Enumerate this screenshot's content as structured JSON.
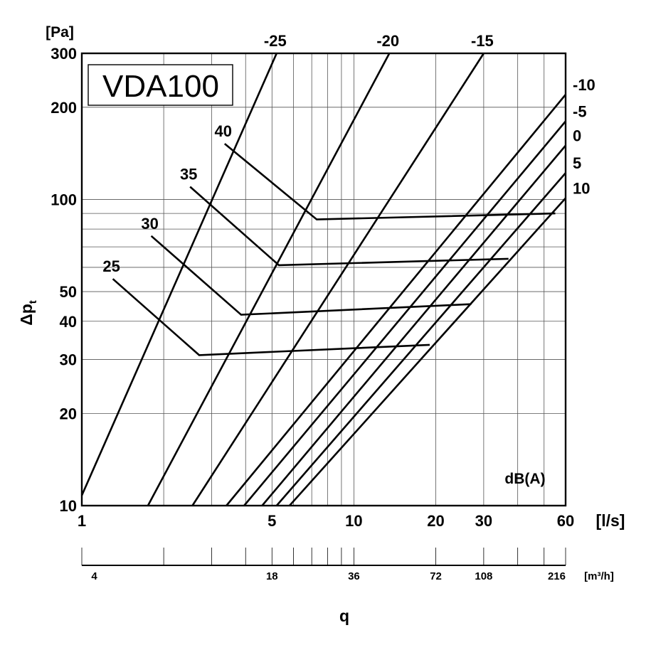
{
  "chart_data": {
    "type": "line",
    "title": "VDA100",
    "x_unit": "[l/s]",
    "y_unit": "[Pa]",
    "ylabel_main": "Δp",
    "ylabel_sub": "t",
    "xlabel": "q",
    "x_scale": "log",
    "y_scale": "log",
    "xlim": [
      1,
      60
    ],
    "ylim": [
      10,
      300
    ],
    "x_ticks": [
      1,
      5,
      10,
      20,
      30,
      60
    ],
    "y_ticks": [
      10,
      20,
      30,
      40,
      50,
      100,
      200,
      300
    ],
    "x_grid": [
      1,
      2,
      3,
      4,
      5,
      6,
      7,
      8,
      9,
      10,
      20,
      30,
      40,
      50,
      60
    ],
    "y_grid": [
      10,
      20,
      30,
      40,
      50,
      60,
      70,
      80,
      90,
      100,
      200,
      300
    ],
    "secondary_axis": {
      "unit": "[m³/h]",
      "ticks": [
        4,
        18,
        36,
        72,
        108,
        216
      ],
      "minor_q": [
        1,
        2,
        3,
        4,
        5,
        6,
        7,
        8,
        9,
        10,
        20,
        30,
        40,
        50,
        60
      ]
    },
    "damper_lines": [
      {
        "label": "-25",
        "points": [
          [
            1,
            10.8
          ],
          [
            5.2,
            300
          ]
        ]
      },
      {
        "label": "-20",
        "points": [
          [
            1.75,
            10
          ],
          [
            13.5,
            300
          ]
        ]
      },
      {
        "label": "-15",
        "points": [
          [
            2.55,
            10
          ],
          [
            30,
            300
          ]
        ]
      },
      {
        "label": "-10",
        "points": [
          [
            3.4,
            10
          ],
          [
            60,
            220
          ]
        ]
      },
      {
        "label": "-5",
        "points": [
          [
            3.95,
            10
          ],
          [
            60,
            180
          ]
        ]
      },
      {
        "label": "0",
        "points": [
          [
            4.6,
            10
          ],
          [
            60,
            150
          ]
        ]
      },
      {
        "label": "5",
        "points": [
          [
            5.2,
            10
          ],
          [
            60,
            122
          ]
        ]
      },
      {
        "label": "10",
        "points": [
          [
            5.8,
            10
          ],
          [
            60,
            101
          ]
        ]
      }
    ],
    "sound_lines": [
      {
        "label": "25",
        "points": [
          [
            1.3,
            55
          ],
          [
            2.7,
            31
          ],
          [
            19,
            33.5
          ]
        ]
      },
      {
        "label": "30",
        "points": [
          [
            1.8,
            76
          ],
          [
            3.85,
            42
          ],
          [
            27,
            45.5
          ]
        ]
      },
      {
        "label": "35",
        "points": [
          [
            2.5,
            110
          ],
          [
            5.3,
            61
          ],
          [
            37,
            64
          ]
        ]
      },
      {
        "label": "40",
        "points": [
          [
            3.35,
            152
          ],
          [
            7.3,
            86
          ],
          [
            55,
            90
          ]
        ]
      }
    ],
    "sound_unit": "dB(A)"
  }
}
